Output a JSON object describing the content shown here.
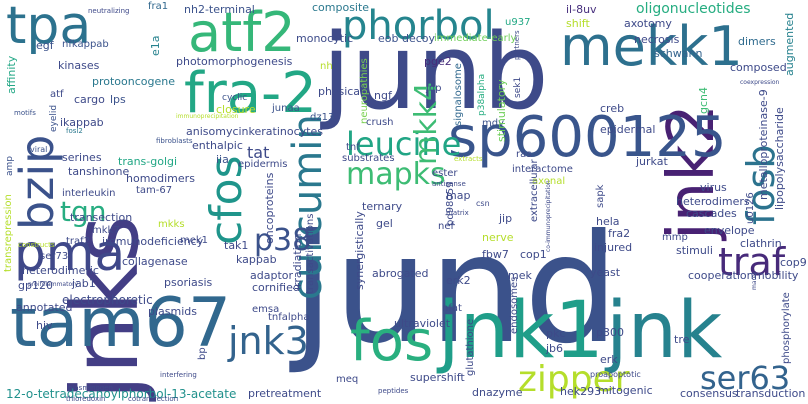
{
  "words": [
    {
      "text": "jund",
      "color": "#3b528b"
    },
    {
      "text": "junb",
      "color": "#3e4a89"
    },
    {
      "text": "jnks",
      "color": "#433e85"
    },
    {
      "text": "jnk1",
      "color": "#1f9e89"
    },
    {
      "text": "jnk",
      "color": "#26828e"
    },
    {
      "text": "tam67",
      "color": "#31688e"
    },
    {
      "text": "jnk2",
      "color": "#482173"
    },
    {
      "text": "sp600125",
      "color": "#39558c"
    },
    {
      "text": "fra-2",
      "color": "#22a785"
    },
    {
      "text": "mekk1",
      "color": "#2d708e"
    },
    {
      "text": "atf2",
      "color": "#35b779"
    },
    {
      "text": "fos",
      "color": "#29af7f"
    },
    {
      "text": "tpa",
      "color": "#2c728e"
    },
    {
      "text": "bzip",
      "color": "#3b528b"
    },
    {
      "text": "pma",
      "color": "#3f4889"
    },
    {
      "text": "cfos",
      "color": "#1f958b"
    },
    {
      "text": "curcumin",
      "color": "#2a788e"
    },
    {
      "text": "phorbol",
      "color": "#25858e"
    },
    {
      "text": "leucine",
      "color": "#21a585"
    },
    {
      "text": "fosb",
      "color": "#2c738e"
    },
    {
      "text": "traf",
      "color": "#472a7a"
    },
    {
      "text": "jnk3",
      "color": "#33638d"
    },
    {
      "text": "zipper",
      "color": "#b5de2b"
    },
    {
      "text": "mapks",
      "color": "#3dbc74"
    },
    {
      "text": "ser63",
      "color": "#33638d"
    },
    {
      "text": "mkk4",
      "color": "#3dbc74"
    },
    {
      "text": "p38",
      "color": "#3b528b"
    },
    {
      "text": "tgn",
      "color": "#27ad81"
    },
    {
      "text": "tat",
      "color": "#3e4a89"
    },
    {
      "text": "12-o-tetradecanoylphorbol-13-acetate",
      "color": "#21918c"
    },
    {
      "text": "composite",
      "color": "#2a788e"
    },
    {
      "text": "nh2-terminal",
      "color": "#3b528b"
    },
    {
      "text": "il-8uv",
      "color": "#472f7d"
    },
    {
      "text": "oligonucleotides",
      "color": "#26ad81"
    },
    {
      "text": "fra1",
      "color": "#31688e"
    },
    {
      "text": "neutralizing",
      "color": "#3e4989"
    },
    {
      "text": "shift",
      "color": "#b5de2b"
    },
    {
      "text": "monocytic",
      "color": "#3e4c8a"
    },
    {
      "text": "eob decoy",
      "color": "#3b528b"
    },
    {
      "text": "u937",
      "color": "#22a884"
    },
    {
      "text": "axotomy",
      "color": "#3e4a89"
    },
    {
      "text": "immediate-early",
      "color": "#6ece58"
    },
    {
      "text": "necrosis",
      "color": "#3e4a89"
    },
    {
      "text": "dimers",
      "color": "#2f6b8e"
    },
    {
      "text": "schwann",
      "color": "#33638d"
    },
    {
      "text": "egf",
      "color": "#3b528b"
    },
    {
      "text": "nfkappab",
      "color": "#3b528b"
    },
    {
      "text": "affinity",
      "color": "#22a785"
    },
    {
      "text": "kinases",
      "color": "#3e4a89"
    },
    {
      "text": "e1a",
      "color": "#26828e"
    },
    {
      "text": "photomorphogenesis",
      "color": "#3e4a89"
    },
    {
      "text": "nh",
      "color": "#b5de2b"
    },
    {
      "text": "ngf",
      "color": "#3e4a89"
    },
    {
      "text": "pge2",
      "color": "#472d7b"
    },
    {
      "text": "neuropathies",
      "color": "#7ad151"
    },
    {
      "text": "jnp",
      "color": "#3e4a89"
    },
    {
      "text": "composed",
      "color": "#3e4a89"
    },
    {
      "text": "augmented",
      "color": "#26828e"
    },
    {
      "text": "protooncogene",
      "color": "#2a788e"
    },
    {
      "text": "lps",
      "color": "#3b528b"
    },
    {
      "text": "signalosome",
      "color": "#31688e"
    },
    {
      "text": "p38alpha",
      "color": "#27ad81"
    },
    {
      "text": "sek1",
      "color": "#3e4a89"
    },
    {
      "text": "cyclic",
      "color": "#3b528b"
    },
    {
      "text": "closure",
      "color": "#b5de2b"
    },
    {
      "text": "junaa",
      "color": "#3b528b"
    },
    {
      "text": "physical",
      "color": "#3e4a89"
    },
    {
      "text": "atf",
      "color": "#3e4a89"
    },
    {
      "text": "cargo",
      "color": "#3e4a89"
    },
    {
      "text": "ikappab",
      "color": "#3e4a89"
    },
    {
      "text": "motifs",
      "color": "#3b528b"
    },
    {
      "text": "eyelid",
      "color": "#3b528b"
    },
    {
      "text": "viral",
      "color": "#3b528b"
    },
    {
      "text": "fosl2",
      "color": "#2a788e"
    },
    {
      "text": "dz13",
      "color": "#3b528b"
    },
    {
      "text": "crush",
      "color": "#3e4a89"
    },
    {
      "text": "mdv",
      "color": "#3b528b"
    },
    {
      "text": "stimulatory",
      "color": "#6ece58"
    },
    {
      "text": "creb",
      "color": "#3e4a89"
    },
    {
      "text": "gcn4",
      "color": "#3dbc74"
    },
    {
      "text": "metalloproteinase-9",
      "color": "#3e4a89"
    },
    {
      "text": "lipopolysaccharide",
      "color": "#3e4a89"
    },
    {
      "text": "anisomycinkeratinocytes",
      "color": "#3e4a89"
    },
    {
      "text": "enthalpic",
      "color": "#3e4a89"
    },
    {
      "text": "immunoprecipitation",
      "color": "#b5de2b"
    },
    {
      "text": "fibroblasts",
      "color": "#3b528b"
    },
    {
      "text": "epidermal",
      "color": "#3e4a89"
    },
    {
      "text": "amp",
      "color": "#3b528b"
    },
    {
      "text": "tanshinone",
      "color": "#3e4a89"
    },
    {
      "text": "serines",
      "color": "#3e4a89"
    },
    {
      "text": "trans-golgi",
      "color": "#22a785"
    },
    {
      "text": "interactome",
      "color": "#3e4a89"
    },
    {
      "text": "axonal",
      "color": "#b5de2b"
    },
    {
      "text": "iia",
      "color": "#3b528b"
    },
    {
      "text": "epidermis",
      "color": "#3e4a89"
    },
    {
      "text": "tnf",
      "color": "#3e4a89"
    },
    {
      "text": "substrates",
      "color": "#3e4a89"
    },
    {
      "text": "ras",
      "color": "#3e4a89"
    },
    {
      "text": "jurkat",
      "color": "#3e4a89"
    },
    {
      "text": "virus",
      "color": "#3e4a89"
    },
    {
      "text": "interleukin",
      "color": "#3e4a89"
    },
    {
      "text": "homodimers",
      "color": "#3e4a89"
    },
    {
      "text": "tam-67",
      "color": "#3e4a89"
    },
    {
      "text": "pd98059",
      "color": "#3e4a89"
    },
    {
      "text": "ester",
      "color": "#3e4a89"
    },
    {
      "text": "antisense",
      "color": "#3e4a89"
    },
    {
      "text": "map",
      "color": "#3e4a89"
    },
    {
      "text": "extracts",
      "color": "#b5de2b"
    },
    {
      "text": "heterodimers",
      "color": "#3e4a89"
    },
    {
      "text": "cascades",
      "color": "#3e4a89"
    },
    {
      "text": "sapk",
      "color": "#3e4a89"
    },
    {
      "text": "u0126",
      "color": "#3e4a89"
    },
    {
      "text": "transrepression",
      "color": "#b5de2b"
    },
    {
      "text": "transection",
      "color": "#3e4a89"
    },
    {
      "text": "mkk7",
      "color": "#3e4a89"
    },
    {
      "text": "oncoproteins",
      "color": "#3e4a89"
    },
    {
      "text": "ternary",
      "color": "#3e4a89"
    },
    {
      "text": "csn",
      "color": "#3e4a89"
    },
    {
      "text": "hela",
      "color": "#3e4a89"
    },
    {
      "text": "envelope",
      "color": "#3e4a89"
    },
    {
      "text": "fra2",
      "color": "#3e4a89"
    },
    {
      "text": "clathrin",
      "color": "#3e4a89"
    },
    {
      "text": "mkks",
      "color": "#b5de2b"
    },
    {
      "text": "tak1",
      "color": "#3e4a89"
    },
    {
      "text": "gel",
      "color": "#3e4a89"
    },
    {
      "text": "nef",
      "color": "#3e4a89"
    },
    {
      "text": "jip",
      "color": "#3e4a89"
    },
    {
      "text": "extracellular",
      "color": "#3e4a89"
    },
    {
      "text": "mmp",
      "color": "#3e4a89"
    },
    {
      "text": "injured",
      "color": "#3e4a89"
    },
    {
      "text": "nerve",
      "color": "#b5de2b"
    },
    {
      "text": "stimuli",
      "color": "#3e4a89"
    },
    {
      "text": "cop9",
      "color": "#3e4a89"
    },
    {
      "text": "constructs",
      "color": "#b5de2b"
    },
    {
      "text": "traf2",
      "color": "#3e4a89"
    },
    {
      "text": "immunodeficiency",
      "color": "#3e4a89"
    },
    {
      "text": "mek1",
      "color": "#3e4a89"
    },
    {
      "text": "kappab",
      "color": "#3e4a89"
    },
    {
      "text": "irradiation",
      "color": "#3e4a89"
    },
    {
      "text": "transactivations",
      "color": "#3e4a89"
    },
    {
      "text": "synergistically",
      "color": "#3e4a89"
    },
    {
      "text": "fbw7",
      "color": "#3e4a89"
    },
    {
      "text": "cop1",
      "color": "#3e4a89"
    },
    {
      "text": "mobility",
      "color": "#3e4a89"
    },
    {
      "text": "ser73",
      "color": "#3e4a89"
    },
    {
      "text": "heterodimeric",
      "color": "#3e4a89"
    },
    {
      "text": "collagenase",
      "color": "#3e4a89"
    },
    {
      "text": "adaptor",
      "color": "#3e4a89"
    },
    {
      "text": "gp120",
      "color": "#3e4a89"
    },
    {
      "text": "jab1",
      "color": "#3e4a89"
    },
    {
      "text": "psoriasis",
      "color": "#3e4a89"
    },
    {
      "text": "cornified",
      "color": "#3e4a89"
    },
    {
      "text": "abrogated",
      "color": "#3e4a89"
    },
    {
      "text": "erk2",
      "color": "#3e4a89"
    },
    {
      "text": "mek",
      "color": "#3e4a89"
    },
    {
      "text": "yeast",
      "color": "#3e4a89"
    },
    {
      "text": "cooperation",
      "color": "#3e4a89"
    },
    {
      "text": "phosphorylate",
      "color": "#3e4a89"
    },
    {
      "text": "electrophoretic",
      "color": "#3e4a89"
    },
    {
      "text": "annotated",
      "color": "#3e4a89"
    },
    {
      "text": "plasmids",
      "color": "#3e4a89"
    },
    {
      "text": "hiv",
      "color": "#3e4a89"
    },
    {
      "text": "emsa",
      "color": "#3e4a89"
    },
    {
      "text": "tnfalpha",
      "color": "#3e4a89"
    },
    {
      "text": "ultraviolet",
      "color": "#3e4a89"
    },
    {
      "text": "nfat",
      "color": "#3e4a89"
    },
    {
      "text": "endosomes",
      "color": "#3e4a89"
    },
    {
      "text": "pkc",
      "color": "#3e4a89"
    },
    {
      "text": "p300",
      "color": "#3e4a89"
    },
    {
      "text": "tre",
      "color": "#3e4a89"
    },
    {
      "text": "jb6",
      "color": "#3e4a89"
    },
    {
      "text": "bp",
      "color": "#3e4a89"
    },
    {
      "text": "glutathione",
      "color": "#3e4a89"
    },
    {
      "text": "erk",
      "color": "#3e4a89"
    },
    {
      "text": "pretreatment",
      "color": "#3e4a89"
    },
    {
      "text": "meq",
      "color": "#3e4a89"
    },
    {
      "text": "supershift",
      "color": "#3e4a89"
    },
    {
      "text": "dnazyme",
      "color": "#3e4a89"
    },
    {
      "text": "hek293",
      "color": "#3e4a89"
    },
    {
      "text": "mitogenic",
      "color": "#3e4a89"
    },
    {
      "text": "consensus",
      "color": "#3e4a89"
    },
    {
      "text": "transduction",
      "color": "#3e4a89"
    },
    {
      "text": "proapoptotic",
      "color": "#3e4a89"
    },
    {
      "text": "peptides",
      "color": "#3e4a89"
    },
    {
      "text": "cotransfection",
      "color": "#3e4a89"
    },
    {
      "text": "plasminogen",
      "color": "#3e4a89"
    },
    {
      "text": "thioredoxin",
      "color": "#3e4a89"
    },
    {
      "text": "proinflammatory",
      "color": "#3e4a89"
    },
    {
      "text": "interfering",
      "color": "#3e4a89"
    },
    {
      "text": "matrix",
      "color": "#3e4a89"
    },
    {
      "text": "co-immunoprecipitation",
      "color": "#3e4a89"
    },
    {
      "text": "partners",
      "color": "#3e4a89"
    },
    {
      "text": "coexpression",
      "color": "#3e4a89"
    },
    {
      "text": "marek",
      "color": "#3e4a89"
    }
  ]
}
